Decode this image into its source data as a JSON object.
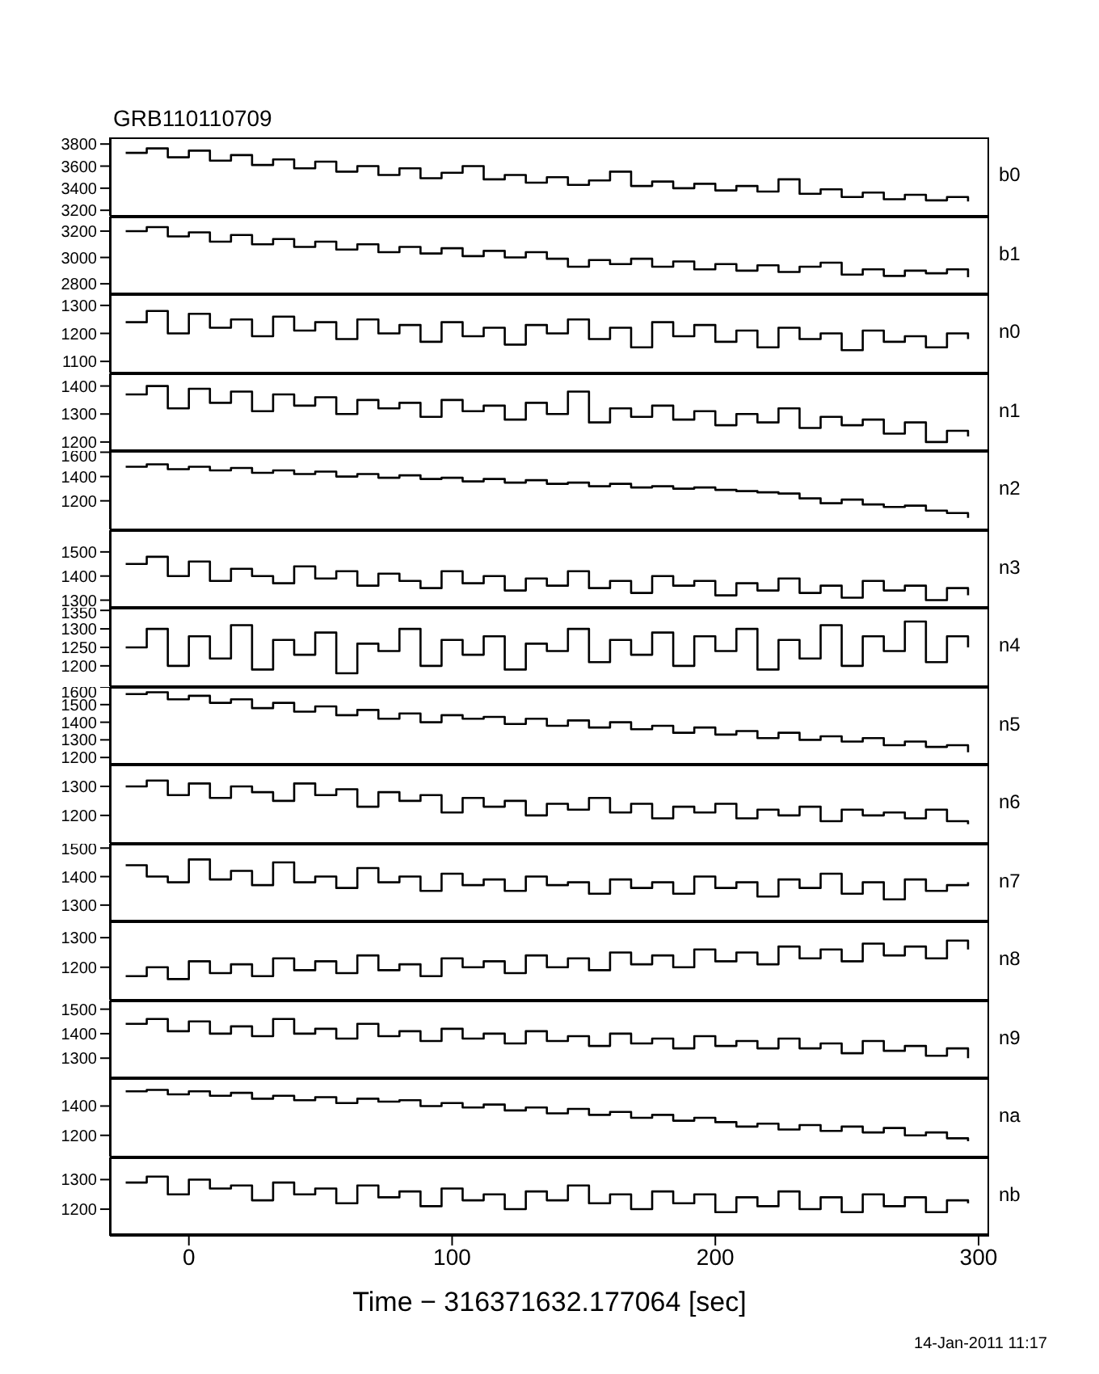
{
  "chart_data": [
    {
      "type": "step",
      "title": "GRB110110709",
      "x": [
        -24,
        -16,
        -8,
        0,
        8,
        16,
        24,
        32,
        40,
        48,
        56,
        64,
        72,
        80,
        88,
        96,
        104,
        112,
        120,
        128,
        136,
        144,
        152,
        160,
        168,
        176,
        184,
        192,
        200,
        208,
        216,
        224,
        232,
        240,
        248,
        256,
        264,
        272,
        280,
        288,
        296
      ],
      "xlim": [
        -30,
        304
      ],
      "xticks": [
        0,
        100,
        200,
        300
      ],
      "ylim": [
        3150,
        3860
      ],
      "yticks": [
        3200,
        3400,
        3600,
        3800
      ],
      "tick_labels": "y",
      "series": [
        {
          "name": "b0",
          "color": "#000000",
          "values": [
            3720,
            3760,
            3680,
            3740,
            3650,
            3700,
            3610,
            3660,
            3580,
            3640,
            3550,
            3600,
            3520,
            3580,
            3490,
            3540,
            3600,
            3480,
            3520,
            3450,
            3500,
            3430,
            3470,
            3550,
            3420,
            3460,
            3400,
            3440,
            3380,
            3420,
            3370,
            3480,
            3350,
            3390,
            3320,
            3360,
            3300,
            3340,
            3290,
            3320,
            3280
          ]
        }
      ]
    },
    {
      "type": "step",
      "x": [
        -24,
        -16,
        -8,
        0,
        8,
        16,
        24,
        32,
        40,
        48,
        56,
        64,
        72,
        80,
        88,
        96,
        104,
        112,
        120,
        128,
        136,
        144,
        152,
        160,
        168,
        176,
        184,
        192,
        200,
        208,
        216,
        224,
        232,
        240,
        248,
        256,
        264,
        272,
        280,
        288,
        296
      ],
      "xlim": [
        -30,
        304
      ],
      "xticks": [
        0,
        100,
        200,
        300
      ],
      "ylim": [
        2715,
        3310
      ],
      "yticks": [
        2800,
        3000,
        3200
      ],
      "tick_labels": "y",
      "series": [
        {
          "name": "b1",
          "color": "#000000",
          "values": [
            3200,
            3230,
            3160,
            3190,
            3120,
            3170,
            3100,
            3140,
            3080,
            3120,
            3060,
            3100,
            3040,
            3080,
            3030,
            3070,
            3010,
            3050,
            3000,
            3040,
            2990,
            2930,
            2980,
            2950,
            2990,
            2930,
            2970,
            2910,
            2950,
            2900,
            2940,
            2890,
            2930,
            2960,
            2870,
            2910,
            2860,
            2900,
            2880,
            2910,
            2850
          ]
        }
      ]
    },
    {
      "type": "step",
      "x": [
        -24,
        -16,
        -8,
        0,
        8,
        16,
        24,
        32,
        40,
        48,
        56,
        64,
        72,
        80,
        88,
        96,
        104,
        112,
        120,
        128,
        136,
        144,
        152,
        160,
        168,
        176,
        184,
        192,
        200,
        208,
        216,
        224,
        232,
        240,
        248,
        256,
        264,
        272,
        280,
        288,
        296
      ],
      "xlim": [
        -30,
        304
      ],
      "xticks": [
        0,
        100,
        200,
        300
      ],
      "ylim": [
        1060,
        1340
      ],
      "yticks": [
        1100,
        1200,
        1300
      ],
      "tick_labels": "y",
      "series": [
        {
          "name": "n0",
          "color": "#000000",
          "values": [
            1240,
            1280,
            1200,
            1270,
            1220,
            1250,
            1190,
            1260,
            1210,
            1240,
            1180,
            1250,
            1200,
            1230,
            1170,
            1240,
            1190,
            1220,
            1160,
            1230,
            1200,
            1250,
            1180,
            1220,
            1150,
            1240,
            1190,
            1230,
            1170,
            1210,
            1150,
            1220,
            1180,
            1200,
            1140,
            1210,
            1170,
            1190,
            1150,
            1200,
            1180
          ]
        }
      ]
    },
    {
      "type": "step",
      "x": [
        -24,
        -16,
        -8,
        0,
        8,
        16,
        24,
        32,
        40,
        48,
        56,
        64,
        72,
        80,
        88,
        96,
        104,
        112,
        120,
        128,
        136,
        144,
        152,
        160,
        168,
        176,
        184,
        192,
        200,
        208,
        216,
        224,
        232,
        240,
        248,
        256,
        264,
        272,
        280,
        288,
        296
      ],
      "xlim": [
        -30,
        304
      ],
      "xticks": [
        0,
        100,
        200,
        300
      ],
      "ylim": [
        1165,
        1445
      ],
      "yticks": [
        1200,
        1300,
        1400
      ],
      "tick_labels": "y",
      "series": [
        {
          "name": "n1",
          "color": "#000000",
          "values": [
            1370,
            1400,
            1320,
            1390,
            1340,
            1380,
            1310,
            1370,
            1330,
            1360,
            1300,
            1350,
            1320,
            1340,
            1290,
            1350,
            1310,
            1330,
            1280,
            1340,
            1300,
            1380,
            1270,
            1320,
            1290,
            1330,
            1280,
            1310,
            1260,
            1300,
            1270,
            1320,
            1250,
            1290,
            1260,
            1280,
            1230,
            1270,
            1200,
            1240,
            1220
          ]
        }
      ]
    },
    {
      "type": "step",
      "x": [
        -24,
        -16,
        -8,
        0,
        8,
        16,
        24,
        32,
        40,
        48,
        56,
        64,
        72,
        80,
        88,
        96,
        104,
        112,
        120,
        128,
        136,
        144,
        152,
        160,
        168,
        176,
        184,
        192,
        200,
        208,
        216,
        224,
        232,
        240,
        248,
        256,
        264,
        272,
        280,
        288,
        296
      ],
      "xlim": [
        -30,
        304
      ],
      "xticks": [
        0,
        100,
        200,
        300
      ],
      "ylim": [
        965,
        1610
      ],
      "yticks": [
        1200,
        1400,
        1600
      ],
      "tick_labels": "y",
      "series": [
        {
          "name": "n2",
          "color": "#000000",
          "values": [
            1480,
            1500,
            1460,
            1480,
            1450,
            1470,
            1430,
            1450,
            1420,
            1440,
            1400,
            1420,
            1390,
            1410,
            1380,
            1390,
            1360,
            1380,
            1350,
            1370,
            1340,
            1350,
            1320,
            1340,
            1310,
            1320,
            1300,
            1310,
            1290,
            1280,
            1270,
            1260,
            1220,
            1180,
            1210,
            1170,
            1150,
            1160,
            1120,
            1100,
            1060
          ]
        }
      ]
    },
    {
      "type": "step",
      "x": [
        -24,
        -16,
        -8,
        0,
        8,
        16,
        24,
        32,
        40,
        48,
        56,
        64,
        72,
        80,
        88,
        96,
        104,
        112,
        120,
        128,
        136,
        144,
        152,
        160,
        168,
        176,
        184,
        192,
        200,
        208,
        216,
        224,
        232,
        240,
        248,
        256,
        264,
        272,
        280,
        288,
        296
      ],
      "xlim": [
        -30,
        304
      ],
      "xticks": [
        0,
        100,
        200,
        300
      ],
      "ylim": [
        1265,
        1590
      ],
      "yticks": [
        1300,
        1400,
        1500
      ],
      "tick_labels": "y",
      "series": [
        {
          "name": "n3",
          "color": "#000000",
          "values": [
            1450,
            1480,
            1400,
            1460,
            1380,
            1430,
            1400,
            1370,
            1440,
            1390,
            1420,
            1360,
            1410,
            1380,
            1350,
            1420,
            1370,
            1400,
            1340,
            1390,
            1360,
            1420,
            1350,
            1380,
            1330,
            1400,
            1360,
            1380,
            1320,
            1370,
            1340,
            1390,
            1330,
            1360,
            1310,
            1380,
            1340,
            1360,
            1300,
            1350,
            1320
          ]
        }
      ]
    },
    {
      "type": "step",
      "x": [
        -24,
        -16,
        -8,
        0,
        8,
        16,
        24,
        32,
        40,
        48,
        56,
        64,
        72,
        80,
        88,
        96,
        104,
        112,
        120,
        128,
        136,
        144,
        152,
        160,
        168,
        176,
        184,
        192,
        200,
        208,
        216,
        224,
        232,
        240,
        248,
        256,
        264,
        272,
        280,
        288,
        296
      ],
      "xlim": [
        -30,
        304
      ],
      "xticks": [
        0,
        100,
        200,
        300
      ],
      "ylim": [
        1145,
        1357
      ],
      "yticks": [
        1200,
        1250,
        1300,
        1350
      ],
      "tick_labels": "y",
      "series": [
        {
          "name": "n4",
          "color": "#000000",
          "values": [
            1250,
            1300,
            1200,
            1280,
            1220,
            1310,
            1190,
            1270,
            1230,
            1290,
            1180,
            1260,
            1240,
            1300,
            1200,
            1270,
            1230,
            1280,
            1190,
            1260,
            1240,
            1300,
            1210,
            1270,
            1230,
            1290,
            1200,
            1280,
            1240,
            1300,
            1190,
            1270,
            1220,
            1310,
            1200,
            1280,
            1240,
            1320,
            1210,
            1280,
            1250
          ]
        }
      ]
    },
    {
      "type": "step",
      "x": [
        -24,
        -16,
        -8,
        0,
        8,
        16,
        24,
        32,
        40,
        48,
        56,
        64,
        72,
        80,
        88,
        96,
        104,
        112,
        120,
        128,
        136,
        144,
        152,
        160,
        168,
        176,
        184,
        192,
        200,
        208,
        216,
        224,
        232,
        240,
        248,
        256,
        264,
        272,
        280,
        288,
        296
      ],
      "xlim": [
        -30,
        304
      ],
      "xticks": [
        0,
        100,
        200,
        300
      ],
      "ylim": [
        1155,
        1600
      ],
      "yticks": [
        1200,
        1300,
        1400,
        1500,
        1600
      ],
      "tick_labels": "y",
      "series": [
        {
          "name": "n5",
          "color": "#000000",
          "values": [
            1560,
            1570,
            1530,
            1550,
            1510,
            1530,
            1480,
            1510,
            1460,
            1490,
            1440,
            1470,
            1420,
            1450,
            1400,
            1440,
            1420,
            1430,
            1390,
            1420,
            1380,
            1410,
            1370,
            1400,
            1360,
            1380,
            1340,
            1370,
            1330,
            1350,
            1310,
            1340,
            1300,
            1320,
            1290,
            1310,
            1270,
            1290,
            1260,
            1270,
            1230
          ]
        }
      ]
    },
    {
      "type": "step",
      "x": [
        -24,
        -16,
        -8,
        0,
        8,
        16,
        24,
        32,
        40,
        48,
        56,
        64,
        72,
        80,
        88,
        96,
        104,
        112,
        120,
        128,
        136,
        144,
        152,
        160,
        168,
        176,
        184,
        192,
        200,
        208,
        216,
        224,
        232,
        240,
        248,
        256,
        264,
        272,
        280,
        288,
        296
      ],
      "xlim": [
        -30,
        304
      ],
      "xticks": [
        0,
        100,
        200,
        300
      ],
      "ylim": [
        1105,
        1375
      ],
      "yticks": [
        1200,
        1300
      ],
      "tick_labels": "y",
      "series": [
        {
          "name": "n6",
          "color": "#000000",
          "values": [
            1300,
            1320,
            1270,
            1310,
            1260,
            1300,
            1280,
            1250,
            1310,
            1270,
            1290,
            1230,
            1280,
            1250,
            1270,
            1210,
            1260,
            1230,
            1250,
            1200,
            1240,
            1220,
            1260,
            1210,
            1240,
            1190,
            1230,
            1210,
            1240,
            1190,
            1220,
            1200,
            1230,
            1180,
            1220,
            1200,
            1210,
            1190,
            1220,
            1180,
            1170
          ]
        }
      ]
    },
    {
      "type": "step",
      "x": [
        -24,
        -16,
        -8,
        0,
        8,
        16,
        24,
        32,
        40,
        48,
        56,
        64,
        72,
        80,
        88,
        96,
        104,
        112,
        120,
        128,
        136,
        144,
        152,
        160,
        168,
        176,
        184,
        192,
        200,
        208,
        216,
        224,
        232,
        240,
        248,
        256,
        264,
        272,
        280,
        288,
        296
      ],
      "xlim": [
        -30,
        304
      ],
      "xticks": [
        0,
        100,
        200,
        300
      ],
      "ylim": [
        1240,
        1515
      ],
      "yticks": [
        1300,
        1400,
        1500
      ],
      "tick_labels": "y",
      "series": [
        {
          "name": "n7",
          "color": "#000000",
          "values": [
            1440,
            1400,
            1380,
            1460,
            1390,
            1420,
            1370,
            1450,
            1380,
            1400,
            1360,
            1430,
            1380,
            1400,
            1350,
            1410,
            1370,
            1390,
            1350,
            1400,
            1370,
            1380,
            1340,
            1390,
            1360,
            1380,
            1340,
            1400,
            1360,
            1380,
            1330,
            1390,
            1360,
            1410,
            1340,
            1380,
            1320,
            1390,
            1350,
            1370,
            1380
          ]
        }
      ]
    },
    {
      "type": "step",
      "x": [
        -24,
        -16,
        -8,
        0,
        8,
        16,
        24,
        32,
        40,
        48,
        56,
        64,
        72,
        80,
        88,
        96,
        104,
        112,
        120,
        128,
        136,
        144,
        152,
        160,
        168,
        176,
        184,
        192,
        200,
        208,
        216,
        224,
        232,
        240,
        248,
        256,
        264,
        272,
        280,
        288,
        296
      ],
      "xlim": [
        -30,
        304
      ],
      "xticks": [
        0,
        100,
        200,
        300
      ],
      "ylim": [
        1090,
        1355
      ],
      "yticks": [
        1200,
        1300
      ],
      "tick_labels": "y",
      "series": [
        {
          "name": "n8",
          "color": "#000000",
          "values": [
            1170,
            1200,
            1160,
            1220,
            1180,
            1210,
            1170,
            1230,
            1190,
            1220,
            1180,
            1240,
            1190,
            1210,
            1170,
            1230,
            1200,
            1220,
            1180,
            1240,
            1200,
            1230,
            1190,
            1250,
            1210,
            1240,
            1200,
            1260,
            1220,
            1250,
            1210,
            1270,
            1230,
            1260,
            1220,
            1280,
            1240,
            1270,
            1230,
            1290,
            1260
          ]
        }
      ]
    },
    {
      "type": "step",
      "x": [
        -24,
        -16,
        -8,
        0,
        8,
        16,
        24,
        32,
        40,
        48,
        56,
        64,
        72,
        80,
        88,
        96,
        104,
        112,
        120,
        128,
        136,
        144,
        152,
        160,
        168,
        176,
        184,
        192,
        200,
        208,
        216,
        224,
        232,
        240,
        248,
        256,
        264,
        272,
        280,
        288,
        296
      ],
      "xlim": [
        -30,
        304
      ],
      "xticks": [
        0,
        100,
        200,
        300
      ],
      "ylim": [
        1215,
        1535
      ],
      "yticks": [
        1300,
        1400,
        1500
      ],
      "tick_labels": "y",
      "series": [
        {
          "name": "n9",
          "color": "#000000",
          "values": [
            1440,
            1460,
            1410,
            1450,
            1400,
            1430,
            1390,
            1460,
            1400,
            1420,
            1380,
            1440,
            1390,
            1410,
            1370,
            1420,
            1380,
            1400,
            1360,
            1410,
            1370,
            1390,
            1350,
            1400,
            1360,
            1380,
            1340,
            1390,
            1350,
            1370,
            1340,
            1380,
            1340,
            1360,
            1320,
            1370,
            1330,
            1350,
            1310,
            1340,
            1300
          ]
        }
      ]
    },
    {
      "type": "step",
      "x": [
        -24,
        -16,
        -8,
        0,
        8,
        16,
        24,
        32,
        40,
        48,
        56,
        64,
        72,
        80,
        88,
        96,
        104,
        112,
        120,
        128,
        136,
        144,
        152,
        160,
        168,
        176,
        184,
        192,
        200,
        208,
        216,
        224,
        232,
        240,
        248,
        256,
        264,
        272,
        280,
        288,
        296
      ],
      "xlim": [
        -30,
        304
      ],
      "xticks": [
        0,
        100,
        200,
        300
      ],
      "ylim": [
        1055,
        1590
      ],
      "yticks": [
        1200,
        1400
      ],
      "tick_labels": "y",
      "series": [
        {
          "name": "na",
          "color": "#000000",
          "values": [
            1500,
            1510,
            1480,
            1500,
            1470,
            1490,
            1450,
            1470,
            1440,
            1460,
            1420,
            1450,
            1430,
            1440,
            1400,
            1420,
            1390,
            1410,
            1370,
            1390,
            1350,
            1380,
            1340,
            1360,
            1320,
            1340,
            1300,
            1320,
            1290,
            1260,
            1280,
            1240,
            1270,
            1230,
            1260,
            1220,
            1250,
            1200,
            1220,
            1180,
            1160
          ]
        }
      ]
    },
    {
      "type": "step",
      "xlabel": "Time − 316371632.177064 [sec]",
      "annotations": [
        "14-Jan-2011 11:17"
      ],
      "x": [
        -24,
        -16,
        -8,
        0,
        8,
        16,
        24,
        32,
        40,
        48,
        56,
        64,
        72,
        80,
        88,
        96,
        104,
        112,
        120,
        128,
        136,
        144,
        152,
        160,
        168,
        176,
        184,
        192,
        200,
        208,
        216,
        224,
        232,
        240,
        248,
        256,
        264,
        272,
        280,
        288,
        296
      ],
      "xlim": [
        -30,
        304
      ],
      "xticks": [
        0,
        100,
        200,
        300
      ],
      "ylim": [
        1110,
        1375
      ],
      "yticks": [
        1200,
        1300
      ],
      "series": [
        {
          "name": "nb",
          "color": "#000000",
          "values": [
            1290,
            1310,
            1250,
            1300,
            1270,
            1280,
            1230,
            1290,
            1250,
            1270,
            1220,
            1280,
            1240,
            1260,
            1210,
            1270,
            1230,
            1250,
            1200,
            1260,
            1230,
            1280,
            1220,
            1250,
            1200,
            1260,
            1220,
            1250,
            1190,
            1240,
            1210,
            1260,
            1200,
            1240,
            1190,
            1250,
            1210,
            1240,
            1190,
            1230,
            1220
          ]
        }
      ]
    }
  ]
}
